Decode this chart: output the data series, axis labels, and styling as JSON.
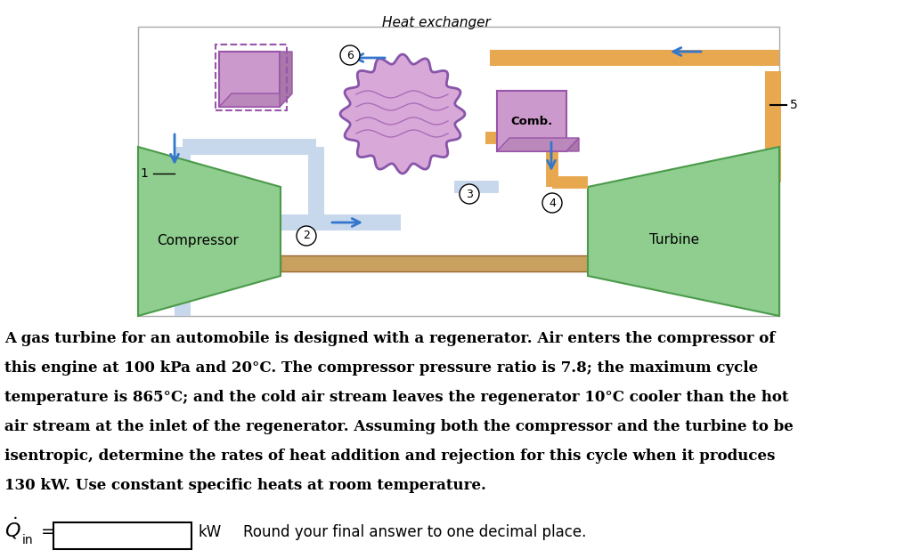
{
  "bg_color": "#ffffff",
  "title_text": "Heat exchanger",
  "paragraph_lines": [
    "A gas turbine for an automobile is designed with a regenerator. Air enters the compressor of",
    "this engine at 100 kPa and 20°C. The compressor pressure ratio is 7.8; the maximum cycle",
    "temperature is 865°C; and the cold air stream leaves the regenerator 10°C cooler than the hot",
    "air stream at the inlet of the regenerator. Assuming both the compressor and the turbine to be",
    "isentropic, determine the rates of heat addition and rejection for this cycle when it produces",
    "130 kW. Use constant specific heats at room temperature."
  ],
  "round_text": "Round your final answer to one decimal place.",
  "green_comp": "#90CE90",
  "green_edge": "#4a9a4a",
  "purple_regen": "#CC88CC",
  "purple_edge": "#9955aa",
  "purple_comb": "#BB88BB",
  "orange_pipe": "#E8A850",
  "blue_arrow": "#3377CC",
  "light_blue": "#AABBDD",
  "light_blue2": "#BBCCEE",
  "shaft_color": "#C8A060",
  "shaft_edge": "#996633"
}
